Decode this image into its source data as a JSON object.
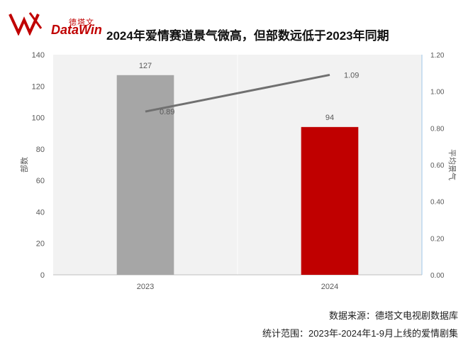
{
  "logo": {
    "brand_cn": "德塔文",
    "brand_en": "DataWin"
  },
  "chart_data": {
    "type": "bar",
    "title": "2024年爱情赛道景气微高，但部数远低于2023年同期",
    "categories": [
      "2023",
      "2024"
    ],
    "series": [
      {
        "name": "部数",
        "kind": "bar",
        "axis": "left",
        "values": [
          127,
          94
        ],
        "colors": [
          "#a6a6a6",
          "#c00000"
        ]
      },
      {
        "name": "平均景气",
        "kind": "line",
        "axis": "right",
        "values": [
          0.89,
          1.09
        ],
        "color": "#707070"
      }
    ],
    "ylabel": "部数",
    "ylabel_right": "平均景气",
    "ylim": [
      0,
      140
    ],
    "ylim_right": [
      0,
      1.2
    ],
    "yticks": [
      "0",
      "20",
      "40",
      "60",
      "80",
      "100",
      "120",
      "140"
    ],
    "yticks_right": [
      "0.00",
      "0.20",
      "0.40",
      "0.60",
      "0.80",
      "1.00",
      "1.20"
    ],
    "bar_labels": [
      "127",
      "94"
    ],
    "line_labels": [
      "0.89",
      "1.09"
    ],
    "grid": true,
    "background": "#f2f2f2"
  },
  "footer": {
    "source": "数据来源：德塔文电视剧数据库",
    "scope": "统计范围：2023年-2024年1-9月上线的爱情剧集"
  }
}
